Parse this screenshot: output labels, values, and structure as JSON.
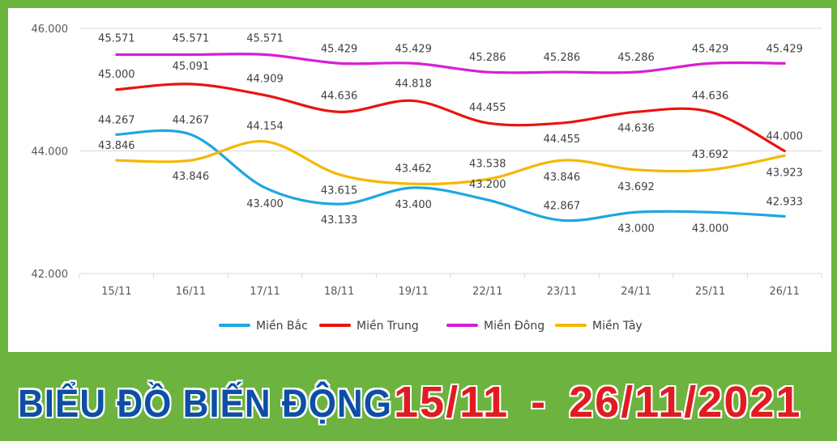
{
  "banner": {
    "title": "BIỂU ĐỒ BIẾN ĐỘNG",
    "date_range": "15/11 - 26/11/2021"
  },
  "colors": {
    "background": "#6cb33f",
    "title": "#0d4ea6",
    "date_range": "#e11b22"
  },
  "chart_data": {
    "type": "line",
    "categories": [
      "15/11",
      "16/11",
      "17/11",
      "18/11",
      "19/11",
      "22/11",
      "23/11",
      "24/11",
      "25/11",
      "26/11"
    ],
    "ylim": [
      42000,
      46000
    ],
    "yticks": [
      "42.000",
      "44.000",
      "46.000"
    ],
    "ytick_values": [
      42000,
      44000,
      46000
    ],
    "grid": true,
    "legend_position": "bottom",
    "smooth": true,
    "series": [
      {
        "name": "Miền Bắc",
        "color": "#1ea7e1",
        "values": [
          44267,
          44267,
          43400,
          43133,
          43400,
          43200,
          42867,
          43000,
          43000,
          42933
        ],
        "labels": [
          "44.267",
          "44.267",
          "43.400",
          "43.133",
          "43.400",
          "43.200",
          "42.867",
          "43.000",
          "43.000",
          "42.933"
        ]
      },
      {
        "name": "Miền Trung",
        "color": "#e8140f",
        "values": [
          45000,
          45091,
          44909,
          44636,
          44818,
          44455,
          44455,
          44636,
          44636,
          44000
        ],
        "labels": [
          "45.000",
          "45.091",
          "44.909",
          "44.636",
          "44.818",
          "44.455",
          "44.455",
          "44.636",
          "44.636",
          "44.000"
        ]
      },
      {
        "name": "Miền Đông",
        "color": "#d61fd6",
        "values": [
          45571,
          45571,
          45571,
          45429,
          45429,
          45286,
          45286,
          45286,
          45429,
          45429
        ],
        "labels": [
          "45.571",
          "45.571",
          "45.571",
          "45.429",
          "45.429",
          "45.286",
          "45.286",
          "45.286",
          "45.429",
          "45.429"
        ]
      },
      {
        "name": "Miền Tây",
        "color": "#f5b800",
        "values": [
          43846,
          43846,
          44154,
          43615,
          43462,
          43538,
          43846,
          43692,
          43692,
          43923
        ],
        "labels": [
          "43.846",
          "43.846",
          "44.154",
          "43.615",
          "43.462",
          "43.538",
          "43.846",
          "43.692",
          "43.692",
          "43.923"
        ]
      }
    ]
  }
}
